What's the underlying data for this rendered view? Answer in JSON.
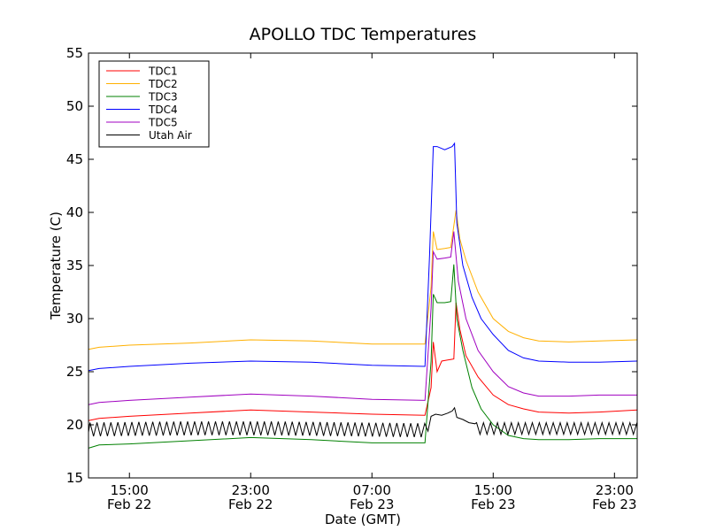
{
  "chart_data": {
    "type": "line",
    "title": "APOLLO TDC Temperatures",
    "xlabel": "Date (GMT)",
    "ylabel": "Temperature (C)",
    "xlim": [
      12.3,
      48.5
    ],
    "ylim": [
      15,
      55
    ],
    "yticks": [
      15,
      20,
      25,
      30,
      35,
      40,
      45,
      50,
      55
    ],
    "xticks": [
      {
        "value": 15,
        "time": "15:00",
        "date": "Feb 22"
      },
      {
        "value": 23,
        "time": "23:00",
        "date": "Feb 22"
      },
      {
        "value": 31,
        "time": "07:00",
        "date": "Feb 23"
      },
      {
        "value": 39,
        "time": "15:00",
        "date": "Feb 23"
      },
      {
        "value": 47,
        "time": "23:00",
        "date": "Feb 23"
      }
    ],
    "legend_position": "top-left",
    "series": [
      {
        "name": "TDC1",
        "color": "#ff0000",
        "points": [
          [
            12.3,
            20.4
          ],
          [
            13,
            20.6
          ],
          [
            15,
            20.8
          ],
          [
            19,
            21.1
          ],
          [
            23,
            21.4
          ],
          [
            27,
            21.2
          ],
          [
            31,
            21.0
          ],
          [
            34.5,
            20.9
          ],
          [
            34.9,
            23.5
          ],
          [
            35.05,
            27.8
          ],
          [
            35.3,
            25.0
          ],
          [
            35.6,
            26.0
          ],
          [
            36,
            26.1
          ],
          [
            36.4,
            26.2
          ],
          [
            36.55,
            31.5
          ],
          [
            36.8,
            29.0
          ],
          [
            37.2,
            26.5
          ],
          [
            38,
            24.5
          ],
          [
            39,
            22.8
          ],
          [
            40,
            21.9
          ],
          [
            41,
            21.5
          ],
          [
            42,
            21.2
          ],
          [
            44,
            21.1
          ],
          [
            46,
            21.2
          ],
          [
            48.5,
            21.4
          ]
        ]
      },
      {
        "name": "TDC2",
        "color": "#ffb000",
        "points": [
          [
            12.3,
            27.1
          ],
          [
            13,
            27.3
          ],
          [
            15,
            27.5
          ],
          [
            19,
            27.7
          ],
          [
            23,
            28.0
          ],
          [
            27,
            27.9
          ],
          [
            31,
            27.6
          ],
          [
            34.5,
            27.6
          ],
          [
            34.9,
            33.0
          ],
          [
            35.05,
            38.2
          ],
          [
            35.3,
            36.5
          ],
          [
            35.8,
            36.6
          ],
          [
            36.2,
            36.7
          ],
          [
            36.55,
            40.2
          ],
          [
            36.8,
            37.5
          ],
          [
            37.2,
            35.5
          ],
          [
            38,
            32.5
          ],
          [
            39,
            30.0
          ],
          [
            40,
            28.8
          ],
          [
            41,
            28.2
          ],
          [
            42,
            27.9
          ],
          [
            44,
            27.8
          ],
          [
            46,
            27.9
          ],
          [
            48.5,
            28.0
          ]
        ]
      },
      {
        "name": "TDC3",
        "color": "#008000",
        "points": [
          [
            12.3,
            17.8
          ],
          [
            13,
            18.1
          ],
          [
            15,
            18.2
          ],
          [
            19,
            18.5
          ],
          [
            23,
            18.8
          ],
          [
            27,
            18.6
          ],
          [
            31,
            18.3
          ],
          [
            34.5,
            18.3
          ],
          [
            34.9,
            26.0
          ],
          [
            35.05,
            32.3
          ],
          [
            35.3,
            31.5
          ],
          [
            35.8,
            31.5
          ],
          [
            36.2,
            31.6
          ],
          [
            36.4,
            35.1
          ],
          [
            36.6,
            30.0
          ],
          [
            37,
            27.0
          ],
          [
            37.6,
            23.5
          ],
          [
            38.2,
            21.5
          ],
          [
            39,
            20.0
          ],
          [
            40,
            19.0
          ],
          [
            41,
            18.7
          ],
          [
            42,
            18.6
          ],
          [
            44,
            18.6
          ],
          [
            46,
            18.7
          ],
          [
            48.5,
            18.7
          ]
        ]
      },
      {
        "name": "TDC4",
        "color": "#0000ff",
        "points": [
          [
            12.3,
            25.1
          ],
          [
            13,
            25.3
          ],
          [
            15,
            25.5
          ],
          [
            19,
            25.8
          ],
          [
            23,
            26.0
          ],
          [
            27,
            25.9
          ],
          [
            31,
            25.6
          ],
          [
            34.5,
            25.5
          ],
          [
            34.8,
            36.0
          ],
          [
            35.05,
            46.2
          ],
          [
            35.3,
            46.2
          ],
          [
            35.8,
            45.9
          ],
          [
            36.3,
            46.2
          ],
          [
            36.45,
            46.5
          ],
          [
            36.6,
            39.0
          ],
          [
            37,
            35.0
          ],
          [
            37.6,
            32.0
          ],
          [
            38.2,
            30.0
          ],
          [
            39,
            28.5
          ],
          [
            40,
            27.0
          ],
          [
            41,
            26.3
          ],
          [
            42,
            26.0
          ],
          [
            44,
            25.9
          ],
          [
            46,
            25.9
          ],
          [
            48.5,
            26.0
          ]
        ]
      },
      {
        "name": "TDC5",
        "color": "#a000c0",
        "points": [
          [
            12.3,
            21.9
          ],
          [
            13,
            22.1
          ],
          [
            15,
            22.3
          ],
          [
            19,
            22.6
          ],
          [
            23,
            22.9
          ],
          [
            27,
            22.7
          ],
          [
            31,
            22.4
          ],
          [
            34.5,
            22.3
          ],
          [
            34.9,
            31.0
          ],
          [
            35.05,
            36.3
          ],
          [
            35.3,
            35.6
          ],
          [
            35.8,
            35.7
          ],
          [
            36.2,
            35.8
          ],
          [
            36.4,
            38.2
          ],
          [
            36.7,
            33.5
          ],
          [
            37.2,
            30.0
          ],
          [
            38,
            27.0
          ],
          [
            39,
            25.0
          ],
          [
            40,
            23.6
          ],
          [
            41,
            23.0
          ],
          [
            42,
            22.7
          ],
          [
            44,
            22.7
          ],
          [
            46,
            22.8
          ],
          [
            48.5,
            22.8
          ]
        ]
      },
      {
        "name": "Utah Air",
        "color": "#000000",
        "points": "generated"
      }
    ]
  }
}
